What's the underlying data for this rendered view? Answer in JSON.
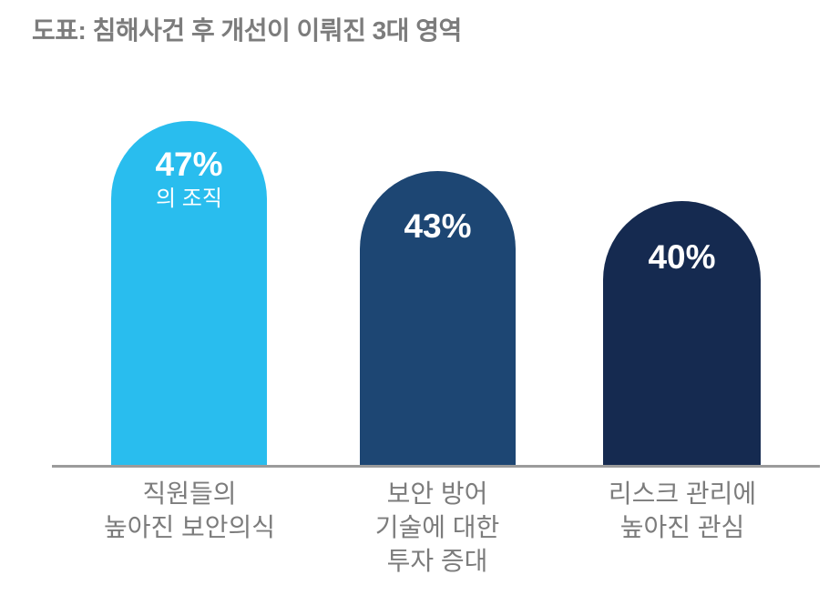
{
  "title": "도표: 침해사건 후 개선이 이뤄진 3대 영역",
  "bars": [
    {
      "value_label": "47%",
      "sublabel": "의 조직",
      "color": "#29bdee",
      "label_lines": [
        "직원들의",
        "높아진 보안의식"
      ]
    },
    {
      "value_label": "43%",
      "color": "#1d4673",
      "label_lines": [
        "보안 방어",
        "기술에 대한",
        "투자 증대"
      ]
    },
    {
      "value_label": "40%",
      "color": "#152a50",
      "label_lines": [
        "리스크 관리에",
        "높아진 관심"
      ]
    }
  ],
  "axis_color": "#9b9b9b",
  "text_color": "#7c7c7c",
  "chart_data": {
    "type": "bar",
    "title": "도표: 침해사건 후 개선이 이뤄진 3대 영역",
    "categories": [
      "직원들의 높아진 보안의식",
      "보안 방어 기술에 대한 투자 증대",
      "리스크 관리에 높아진 관심"
    ],
    "values": [
      47,
      43,
      40
    ],
    "value_labels": [
      "47%",
      "43%",
      "40%"
    ],
    "first_bar_sublabel": "의 조직",
    "bar_colors": [
      "#29bdee",
      "#1d4673",
      "#152a50"
    ],
    "ylim": [
      0,
      60
    ],
    "grid": false,
    "legend": false,
    "bar_style": "rounded-top",
    "xlabel": "",
    "ylabel": ""
  }
}
